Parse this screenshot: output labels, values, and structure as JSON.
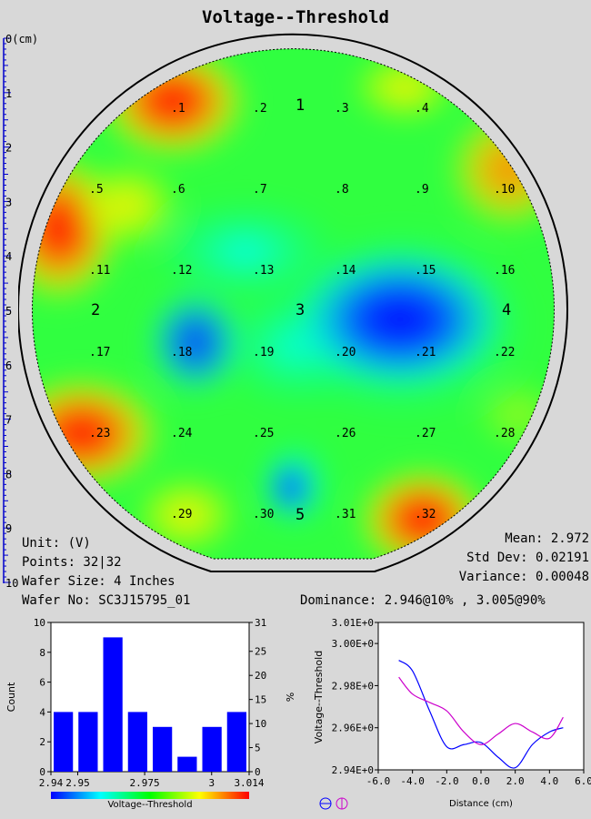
{
  "title": "Voltage--Threshold",
  "colors": {
    "low": "#0000ff",
    "mid": "#00ff00",
    "high": "#ff0000",
    "ruler": "#0000cc",
    "series1": "#0000ff",
    "series2": "#cc00cc"
  },
  "ruler": {
    "labels": [
      "0(cm)",
      "1",
      "2",
      "3",
      "4",
      "5",
      "6",
      "7",
      "8",
      "9",
      "10"
    ]
  },
  "stats_left": {
    "unit": "Unit: (V)",
    "points": "Points: 32|32",
    "wafer_size": "Wafer Size: 4 Inches",
    "wafer_no": "Wafer No: SC3J15795_01"
  },
  "stats_right": {
    "mean": "Mean: 2.972",
    "std_dev": "Std Dev: 0.02191",
    "variance": "Variance: 0.00048",
    "dominance": "Dominance: 2.946@10% , 3.005@90%"
  },
  "chart_data": [
    {
      "type": "heatmap",
      "title": "Voltage--Threshold",
      "site_labels": [
        ".1",
        ".2",
        ".3",
        ".4",
        ".5",
        ".6",
        ".7",
        ".8",
        ".9",
        ".10",
        ".11",
        ".12",
        ".13",
        ".14",
        ".15",
        ".16",
        ".17",
        ".18",
        ".19",
        ".20",
        ".21",
        ".22",
        ".23",
        ".24",
        ".25",
        ".26",
        ".27",
        ".28",
        ".29",
        ".30",
        ".31",
        ".32"
      ],
      "region_labels": [
        "1",
        "2",
        "3",
        "4",
        "5"
      ],
      "colorscale": "blue-cyan-green-yellow-red"
    },
    {
      "type": "bar",
      "xlabel": "Voltage--Threshold",
      "ylabel": "Count",
      "y2label": "%",
      "ylim": [
        0,
        10
      ],
      "y2lim": [
        0,
        31
      ],
      "yticks": [
        "0",
        "2",
        "4",
        "6",
        "8",
        "10"
      ],
      "y2ticks": [
        "0",
        "5",
        "10",
        "15",
        "20",
        "25",
        "31"
      ],
      "xticks": [
        "2.94",
        "2.95",
        "2.975",
        "3",
        "3.014"
      ],
      "values": [
        4,
        4,
        9,
        4,
        3,
        1,
        3,
        4
      ]
    },
    {
      "type": "line",
      "xlabel": "Distance (cm)",
      "ylabel": "Voltage--Threshold",
      "xlim": [
        -6.0,
        6.0
      ],
      "ylim": [
        2.94,
        3.01
      ],
      "xticks": [
        "-6.0",
        "-4.0",
        "-2.0",
        "0.0",
        "2.0",
        "4.0",
        "6.0"
      ],
      "yticks": [
        "2.94E+0",
        "2.96E+0",
        "2.98E+0",
        "3.00E+0",
        "3.01E+0"
      ],
      "series": [
        {
          "x": [
            -4.8,
            -4.0,
            -3.0,
            -2.0,
            -1.0,
            0.0,
            1.0,
            2.0,
            3.0,
            4.0,
            4.8
          ],
          "y": [
            2.992,
            2.987,
            2.968,
            2.951,
            2.952,
            2.953,
            2.946,
            2.941,
            2.952,
            2.958,
            2.96
          ]
        },
        {
          "x": [
            -4.8,
            -4.0,
            -3.0,
            -2.0,
            -1.0,
            0.0,
            1.0,
            2.0,
            3.0,
            4.0,
            4.8
          ],
          "y": [
            2.984,
            2.976,
            2.972,
            2.968,
            2.958,
            2.952,
            2.957,
            2.962,
            2.958,
            2.955,
            2.965
          ]
        }
      ]
    }
  ]
}
